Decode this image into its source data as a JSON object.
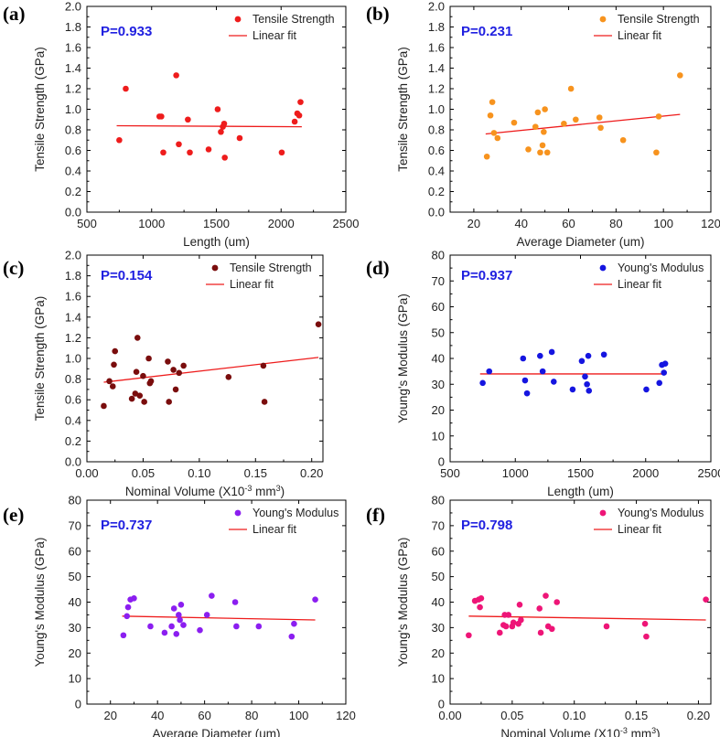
{
  "figure": {
    "colors": {
      "text": "#222222",
      "axis": "#000000",
      "fit_line": "#ee1c1c",
      "pvalue": "#2020e0"
    }
  },
  "chart_data": [
    {
      "label": "(a)",
      "type": "scatter",
      "xlabel": "Length (um)",
      "ylabel": "Tensile Strength (GPa)",
      "xlim": [
        500,
        2500
      ],
      "ylim": [
        0.0,
        2.0
      ],
      "xticks": [
        "500",
        "1000",
        "1500",
        "2000",
        "2500"
      ],
      "yticks": [
        "0.0",
        "0.2",
        "0.4",
        "0.6",
        "0.8",
        "1.0",
        "1.2",
        "1.4",
        "1.6",
        "1.8",
        "2.0"
      ],
      "legend": {
        "series": "Tensile Strength",
        "fit": "Linear fit",
        "position": "top-right"
      },
      "pvalue": "P=0.933",
      "color": "#ee1c1c",
      "x": [
        750,
        800,
        1060,
        1075,
        1090,
        1190,
        1210,
        1280,
        1295,
        1440,
        1510,
        1535,
        1550,
        1560,
        1565,
        1680,
        2005,
        2105,
        2125,
        2140,
        2150
      ],
      "y": [
        0.7,
        1.2,
        0.93,
        0.93,
        0.58,
        1.33,
        0.66,
        0.9,
        0.58,
        0.61,
        1.0,
        0.78,
        0.83,
        0.86,
        0.53,
        0.72,
        0.58,
        0.88,
        0.96,
        0.94,
        1.07
      ],
      "fit": {
        "x": [
          730,
          2160
        ],
        "y": [
          0.84,
          0.83
        ]
      }
    },
    {
      "label": "(b)",
      "type": "scatter",
      "xlabel": "Average Diameter (um)",
      "ylabel": "Tensile Strength (GPa)",
      "xlim": [
        10,
        120
      ],
      "ylim": [
        0.0,
        2.0
      ],
      "xticks": [
        "20",
        "40",
        "60",
        "80",
        "100",
        "120"
      ],
      "yticks": [
        "0.0",
        "0.2",
        "0.4",
        "0.6",
        "0.8",
        "1.0",
        "1.2",
        "1.4",
        "1.6",
        "1.8",
        "2.0"
      ],
      "legend": {
        "series": "Tensile Strength",
        "fit": "Linear fit",
        "position": "top-right"
      },
      "pvalue": "P=0.231",
      "color": "#f7931e",
      "x": [
        25.5,
        27,
        27.8,
        28.5,
        30,
        37,
        43,
        46,
        47,
        48,
        49,
        49.5,
        50,
        51,
        58,
        61,
        63,
        73,
        73.5,
        83,
        97,
        98,
        107
      ],
      "y": [
        0.54,
        0.94,
        1.07,
        0.77,
        0.72,
        0.87,
        0.61,
        0.83,
        0.97,
        0.58,
        0.65,
        0.78,
        1.0,
        0.58,
        0.86,
        1.2,
        0.9,
        0.92,
        0.82,
        0.7,
        0.58,
        0.93,
        1.33
      ],
      "fit": {
        "x": [
          25,
          107
        ],
        "y": [
          0.76,
          0.95
        ]
      }
    },
    {
      "label": "(c)",
      "type": "scatter",
      "xlabel": "Nominal Volume (X10",
      "xlabel_sup": "-3",
      "xlabel_tail": " mm",
      "xlabel_sup2": "3",
      "xlabel_end": ")",
      "ylabel": "Tensile Strength (GPa)",
      "xlim": [
        0.0,
        0.21
      ],
      "ylim": [
        0.0,
        2.0
      ],
      "xticks": [
        "0.00",
        "0.05",
        "0.10",
        "0.15",
        "0.20"
      ],
      "yticks": [
        "0.0",
        "0.2",
        "0.4",
        "0.6",
        "0.8",
        "1.0",
        "1.2",
        "1.4",
        "1.6",
        "1.8",
        "2.0"
      ],
      "legend": {
        "series": "Tensile Strength",
        "fit": "Linear fit",
        "position": "top-right"
      },
      "pvalue": "P=0.154",
      "color": "#7a0d0d",
      "x": [
        0.015,
        0.02,
        0.023,
        0.024,
        0.025,
        0.04,
        0.043,
        0.044,
        0.045,
        0.047,
        0.05,
        0.051,
        0.055,
        0.056,
        0.057,
        0.072,
        0.073,
        0.077,
        0.079,
        0.082,
        0.086,
        0.126,
        0.157,
        0.158,
        0.206
      ],
      "y": [
        0.54,
        0.78,
        0.73,
        0.94,
        1.07,
        0.61,
        0.66,
        0.87,
        1.2,
        0.64,
        0.83,
        0.58,
        1.0,
        0.76,
        0.78,
        0.97,
        0.58,
        0.89,
        0.7,
        0.86,
        0.93,
        0.82,
        0.93,
        0.58,
        1.33
      ],
      "fit": {
        "x": [
          0.015,
          0.206
        ],
        "y": [
          0.77,
          1.01
        ]
      }
    },
    {
      "label": "(d)",
      "type": "scatter",
      "xlabel": "Length (um)",
      "ylabel": "Young's Modulus (GPa)",
      "xlim": [
        500,
        2500
      ],
      "ylim": [
        0,
        80
      ],
      "xticks": [
        "500",
        "1000",
        "1500",
        "2000",
        "2500"
      ],
      "yticks": [
        "0",
        "10",
        "20",
        "30",
        "40",
        "50",
        "60",
        "70",
        "80"
      ],
      "legend": {
        "series": "Young's Modulus",
        "fit": "Linear fit",
        "position": "top-right"
      },
      "pvalue": "P=0.937",
      "color": "#1515e0",
      "x": [
        750,
        800,
        1060,
        1075,
        1090,
        1190,
        1210,
        1280,
        1295,
        1440,
        1510,
        1535,
        1550,
        1560,
        1565,
        1680,
        2005,
        2105,
        2125,
        2140,
        2150
      ],
      "y": [
        30.5,
        35.0,
        40.0,
        31.5,
        26.5,
        41.0,
        35.0,
        42.5,
        31.0,
        28.0,
        39.0,
        33.0,
        30.0,
        41.0,
        27.5,
        41.5,
        28.0,
        30.5,
        37.5,
        34.5,
        38.0
      ],
      "fit": {
        "x": [
          730,
          2160
        ],
        "y": [
          34.0,
          34.0
        ]
      }
    },
    {
      "label": "(e)",
      "type": "scatter",
      "xlabel": "Average Diameter (um)",
      "ylabel": "Young's Modulus (GPa)",
      "xlim": [
        10,
        120
      ],
      "ylim": [
        0,
        80
      ],
      "xticks": [
        "20",
        "40",
        "60",
        "80",
        "100",
        "120"
      ],
      "yticks": [
        "0",
        "10",
        "20",
        "30",
        "40",
        "50",
        "60",
        "70",
        "80"
      ],
      "legend": {
        "series": "Young's Modulus",
        "fit": "Linear fit",
        "position": "top-right"
      },
      "pvalue": "P=0.737",
      "color": "#8b1ef0",
      "x": [
        25.5,
        27,
        27.5,
        28.5,
        30,
        37,
        43,
        46,
        47,
        48,
        49,
        49.5,
        50,
        51,
        58,
        61,
        63,
        73,
        73.5,
        83,
        97,
        98,
        107
      ],
      "y": [
        27.0,
        34.5,
        38.0,
        41.0,
        41.5,
        30.5,
        28.0,
        30.5,
        37.5,
        27.5,
        35.0,
        33.0,
        39.0,
        31.0,
        29.0,
        35.0,
        42.5,
        40.0,
        30.5,
        30.5,
        26.5,
        31.5,
        41.0
      ],
      "fit": {
        "x": [
          25,
          107
        ],
        "y": [
          34.5,
          33.0
        ]
      }
    },
    {
      "label": "(f)",
      "type": "scatter",
      "xlabel": "Nominal Volume (X10",
      "xlabel_sup": "-3",
      "xlabel_tail": " mm",
      "xlabel_sup2": "3",
      "xlabel_end": ")",
      "ylabel": "Young's Modulus (GPa)",
      "xlim": [
        0.0,
        0.21
      ],
      "ylim": [
        0,
        80
      ],
      "xticks": [
        "0.00",
        "0.05",
        "0.10",
        "0.15",
        "0.20"
      ],
      "yticks": [
        "0",
        "10",
        "20",
        "30",
        "40",
        "50",
        "60",
        "70",
        "80"
      ],
      "legend": {
        "series": "Young's Modulus",
        "fit": "Linear fit",
        "position": "top-right"
      },
      "pvalue": "P=0.798",
      "color": "#ee1577",
      "x": [
        0.015,
        0.02,
        0.023,
        0.024,
        0.025,
        0.04,
        0.043,
        0.044,
        0.045,
        0.047,
        0.05,
        0.051,
        0.055,
        0.056,
        0.057,
        0.072,
        0.073,
        0.077,
        0.079,
        0.082,
        0.086,
        0.126,
        0.157,
        0.158,
        0.206
      ],
      "y": [
        27.0,
        40.5,
        41.0,
        38.0,
        41.5,
        28.0,
        31.0,
        35.0,
        30.5,
        35.0,
        30.5,
        32.0,
        31.5,
        39.0,
        33.0,
        37.5,
        28.0,
        42.5,
        30.5,
        29.5,
        40.0,
        30.5,
        31.5,
        26.5,
        41.0
      ],
      "fit": {
        "x": [
          0.015,
          0.206
        ],
        "y": [
          34.5,
          33.0
        ]
      }
    }
  ]
}
